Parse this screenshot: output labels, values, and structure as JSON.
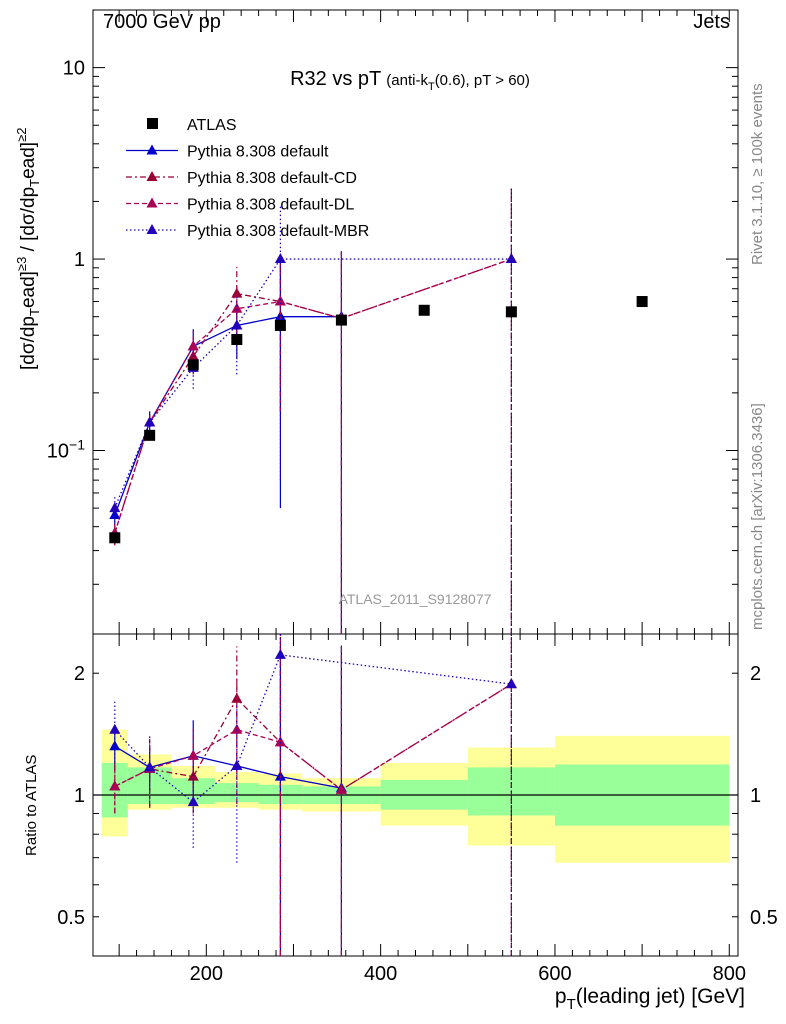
{
  "header": {
    "left": "7000 GeV pp",
    "right": "Jets",
    "title_main": "R32 vs pT",
    "title_sub_pre": "(anti-k",
    "title_sub_sub": "T",
    "title_sub_post": "(0.6), pT > 60)",
    "watermark": "ATLAS_2011_S9128077",
    "side_rivet": "Rivet 3.1.10, ≥ 100k events",
    "side_mcplots": "mcplots.cern.ch [arXiv:1306.3436]"
  },
  "axes": {
    "ylabel_top": "[dσ/dp_Tead]^≥3 / [dσ/dp_Tead]^≥2",
    "ylabel_bottom": "Ratio to ATLAS",
    "xlabel": "p_T(leading jet) [GeV]"
  },
  "chart_data": [
    {
      "type": "scatter",
      "panel": "main",
      "yscale": "log",
      "xlim": [
        70,
        810
      ],
      "ylim": [
        0.011,
        20
      ],
      "y_ticks": [
        {
          "v": 0.1,
          "label": "10^−1"
        },
        {
          "v": 1,
          "label": "1"
        },
        {
          "v": 10,
          "label": "10"
        }
      ],
      "data": {
        "name": "ATLAS",
        "x": [
          95,
          135,
          185,
          235,
          285,
          355,
          450,
          550,
          700
        ],
        "y": [
          0.035,
          0.12,
          0.28,
          0.38,
          0.45,
          0.48,
          0.54,
          0.53,
          0.6
        ]
      },
      "series": [
        {
          "name": "Pythia 8.308 default",
          "color": "#0000cc",
          "dash": "none",
          "x": [
            95,
            135,
            185,
            235,
            285,
            355
          ],
          "y": [
            0.046,
            0.14,
            0.35,
            0.45,
            0.5,
            0.5
          ],
          "err": [
            0.006,
            0.02,
            0.08,
            0.15,
            0.45,
            0.6
          ]
        },
        {
          "name": "Pythia 8.308 default-CD",
          "color": "#990033",
          "dash": "6,3,2,3",
          "x": [
            95,
            135,
            185,
            235,
            285,
            355,
            550
          ],
          "y": [
            0.037,
            0.14,
            0.31,
            0.66,
            0.6,
            0.49,
            1.0
          ],
          "err": [
            0.005,
            0.02,
            0.06,
            0.25,
            0.44,
            0.6,
            1.4
          ]
        },
        {
          "name": "Pythia 8.308 default-DL",
          "color": "#aa0055",
          "dash": "5,3",
          "x": [
            95,
            135,
            185,
            235,
            285,
            355,
            550
          ],
          "y": [
            0.037,
            0.14,
            0.35,
            0.55,
            0.6,
            0.49,
            1.0
          ],
          "err": [
            0.005,
            0.02,
            0.07,
            0.2,
            0.44,
            0.6,
            1.4
          ]
        },
        {
          "name": "Pythia 8.308 default-MBR",
          "color": "#2200bb",
          "dash": "1.5,2.5",
          "x": [
            95,
            135,
            185,
            235,
            285,
            550
          ],
          "y": [
            0.05,
            0.14,
            0.27,
            0.45,
            1.0,
            1.0
          ],
          "err": [
            0.008,
            0.02,
            0.06,
            0.2,
            0.93,
            1.4
          ]
        }
      ]
    },
    {
      "type": "scatter",
      "panel": "ratio",
      "yscale": "log",
      "xlim": [
        70,
        810
      ],
      "ylim": [
        0.4,
        2.5
      ],
      "y_ticks": [
        {
          "v": 0.5,
          "label": "0.5"
        },
        {
          "v": 1,
          "label": "1"
        },
        {
          "v": 2,
          "label": "2"
        }
      ],
      "x_ticks": [
        {
          "v": 200,
          "label": "200"
        },
        {
          "v": 400,
          "label": "400"
        },
        {
          "v": 600,
          "label": "600"
        },
        {
          "v": 800,
          "label": "800"
        }
      ],
      "bands": [
        {
          "x0": 80,
          "x1": 110,
          "inner": [
            0.88,
            1.2
          ],
          "outer": [
            0.79,
            1.45
          ]
        },
        {
          "x0": 110,
          "x1": 160,
          "inner": [
            0.95,
            1.17
          ],
          "outer": [
            0.92,
            1.26
          ]
        },
        {
          "x0": 160,
          "x1": 210,
          "inner": [
            0.95,
            1.1
          ],
          "outer": [
            0.93,
            1.18
          ]
        },
        {
          "x0": 210,
          "x1": 260,
          "inner": [
            0.96,
            1.07
          ],
          "outer": [
            0.93,
            1.14
          ]
        },
        {
          "x0": 260,
          "x1": 310,
          "inner": [
            0.95,
            1.06
          ],
          "outer": [
            0.92,
            1.13
          ]
        },
        {
          "x0": 310,
          "x1": 400,
          "inner": [
            0.95,
            1.05
          ],
          "outer": [
            0.91,
            1.1
          ]
        },
        {
          "x0": 400,
          "x1": 500,
          "inner": [
            0.92,
            1.09
          ],
          "outer": [
            0.84,
            1.2
          ]
        },
        {
          "x0": 500,
          "x1": 600,
          "inner": [
            0.89,
            1.17
          ],
          "outer": [
            0.75,
            1.31
          ]
        },
        {
          "x0": 600,
          "x1": 800,
          "inner": [
            0.84,
            1.19
          ],
          "outer": [
            0.68,
            1.4
          ]
        }
      ],
      "series": [
        {
          "name": "Pythia 8.308 default",
          "color": "#0000cc",
          "dash": "none",
          "x": [
            95,
            135,
            185,
            235,
            285,
            355
          ],
          "y": [
            1.32,
            1.17,
            1.25,
            1.18,
            1.11,
            1.04
          ],
          "err": [
            0.17,
            0.15,
            0.28,
            0.0,
            1.2,
            1.3
          ]
        },
        {
          "name": "Pythia 8.308 default-CD",
          "color": "#990033",
          "dash": "6,3,2,3",
          "x": [
            95,
            135,
            185,
            235,
            285,
            355,
            550
          ],
          "y": [
            1.05,
            1.16,
            1.11,
            1.73,
            1.35,
            1.03,
            1.88
          ],
          "err": [
            0.15,
            0.23,
            0.21,
            0.6,
            1.2,
            1.3,
            2.0
          ]
        },
        {
          "name": "Pythia 8.308 default-DL",
          "color": "#aa0055",
          "dash": "5,3",
          "x": [
            95,
            135,
            185,
            235,
            285,
            355,
            550
          ],
          "y": [
            1.05,
            1.16,
            1.25,
            1.45,
            1.35,
            1.03,
            1.88
          ],
          "err": [
            0.15,
            0.23,
            0.21,
            0.5,
            1.2,
            1.3,
            2.0
          ]
        },
        {
          "name": "Pythia 8.308 default-MBR",
          "color": "#2200bb",
          "dash": "1.5,2.5",
          "x": [
            95,
            135,
            185,
            235,
            285,
            550
          ],
          "y": [
            1.45,
            1.17,
            0.96,
            1.18,
            2.22,
            1.88
          ],
          "err": [
            0.25,
            0.23,
            0.22,
            0.5,
            1.2,
            2.0
          ]
        }
      ]
    }
  ]
}
